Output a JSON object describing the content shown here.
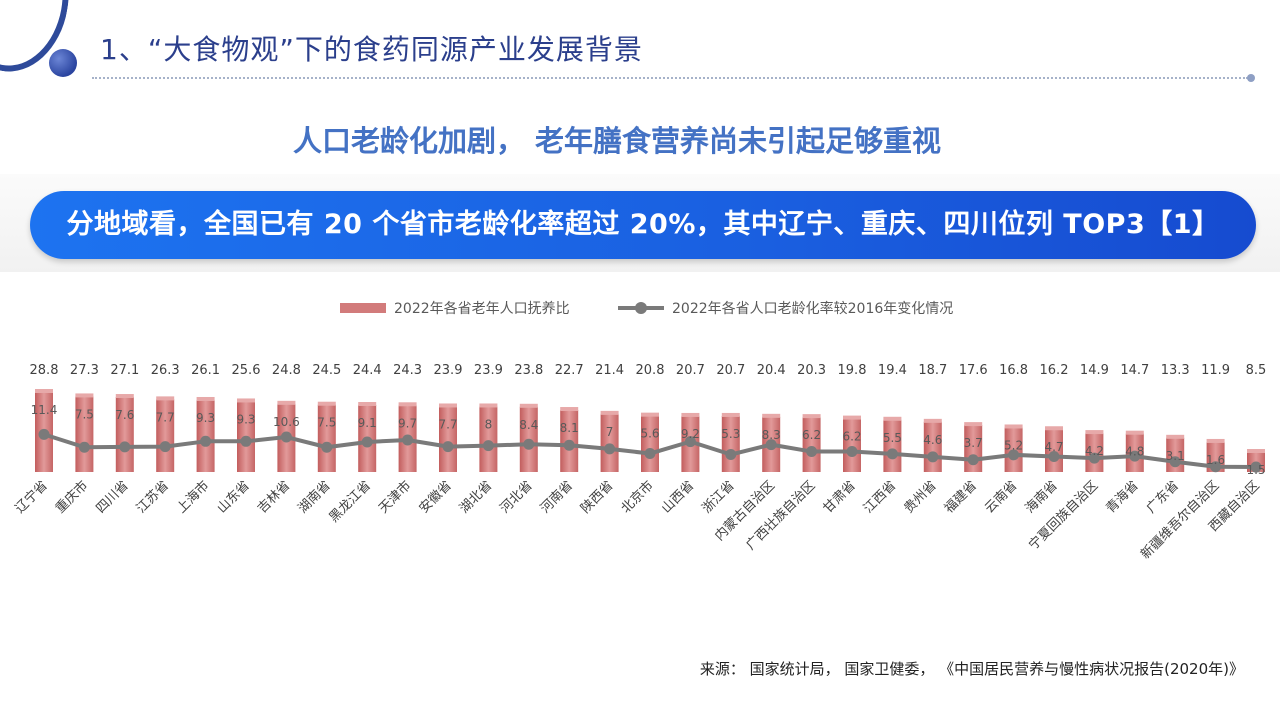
{
  "header": {
    "title": "1、“大食物观”下的食药同源产业发展背景",
    "subtitle": "人口老龄化加剧， 老年膳食营养尚未引起足够重视",
    "banner": "分地域看，全国已有 20 个省市老龄化率超过 20%，其中辽宁、重庆、四川位列 TOP3【1】"
  },
  "colors": {
    "title": "#2b3f8c",
    "subtitle": "#4472c4",
    "banner": "#1a5fe0",
    "bar": "#d27b7b",
    "line": "#7a7a7a"
  },
  "chart_data": {
    "type": "bar",
    "legend_position": "top-center",
    "grid": false,
    "categories": [
      "辽宁省",
      "重庆市",
      "四川省",
      "江苏省",
      "上海市",
      "山东省",
      "吉林省",
      "湖南省",
      "黑龙江省",
      "天津市",
      "安徽省",
      "湖北省",
      "河北省",
      "河南省",
      "陕西省",
      "北京市",
      "山西省",
      "浙江省",
      "内蒙古自治区",
      "广西壮族自治区",
      "甘肃省",
      "江西省",
      "贵州省",
      "福建省",
      "云南省",
      "海南省",
      "宁夏回族自治区",
      "青海省",
      "广东省",
      "新疆维吾尔自治区",
      "西藏自治区"
    ],
    "series": [
      {
        "name": "2022年各省老年人口抚养比",
        "type": "bar",
        "values": [
          28.8,
          27.3,
          27.1,
          26.3,
          26.1,
          25.6,
          24.8,
          24.5,
          24.4,
          24.3,
          23.9,
          23.9,
          23.8,
          22.7,
          21.4,
          20.8,
          20.7,
          20.7,
          20.4,
          20.3,
          19.8,
          19.4,
          18.7,
          17.6,
          16.8,
          16.2,
          14.9,
          14.7,
          13.3,
          11.9,
          8.5
        ]
      },
      {
        "name": "2022年各省人口老龄化率较2016年变化情况",
        "type": "line",
        "values": [
          11.4,
          7.5,
          7.6,
          7.7,
          9.3,
          9.3,
          10.6,
          7.5,
          9.1,
          9.7,
          7.7,
          8,
          8.4,
          8.1,
          7,
          5.6,
          9.2,
          5.3,
          8.3,
          6.2,
          6.2,
          5.5,
          4.6,
          3.7,
          5.2,
          4.7,
          4.2,
          4.8,
          3.1,
          1.6,
          1.5
        ]
      }
    ]
  },
  "source": "来源： 国家统计局， 国家卫健委， 《中国居民营养与慢性病状况报告(2020年)》"
}
